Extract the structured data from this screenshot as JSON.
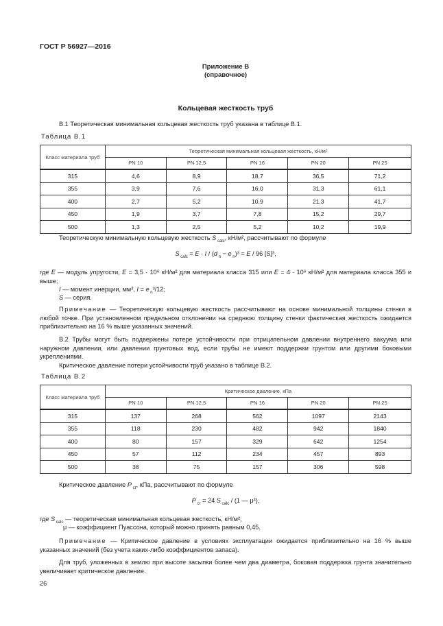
{
  "header": {
    "standard": "ГОСТ Р 56927—2016"
  },
  "appendix": {
    "title": "Приложение В",
    "subtitle": "(справочное)"
  },
  "section_title": "Кольцевая жесткость труб",
  "p_b1": "В.1 Теоретическая минимальная кольцевая жесткость труб указана в таблице В.1.",
  "table1": {
    "caption": "Таблица В.1",
    "row_header": "Класс материала труб",
    "group_header": "Теоретическая минимальная кольцевая жесткость, кН/м²",
    "columns": [
      "PN 10",
      "PN 12,5",
      "PN 16",
      "PN 20",
      "PN 25"
    ],
    "rows": [
      [
        "315",
        "4,6",
        "8,9",
        "18,7",
        "36,5",
        "71,2"
      ],
      [
        "355",
        "3,9",
        "7,6",
        "16,0",
        "31,3",
        "61,1"
      ],
      [
        "400",
        "2,7",
        "5,2",
        "10,9",
        "21,3",
        "41,7"
      ],
      [
        "450",
        "1,9",
        "3,7",
        "7,8",
        "15,2",
        "29,7"
      ],
      [
        "500",
        "1,3",
        "2,5",
        "5,2",
        "10,2",
        "19,9"
      ]
    ]
  },
  "p_scalc_intro": "Теоретическую минимальную кольцевую жесткость S calc, кН/м², рассчитывают по формуле",
  "formula1": "S calc = E · I / (d n − e n)³ = E / 96 [S]³,",
  "where1": [
    "где E — модуль упругости, E = 3,5 · 10⁶ кН/м² для материала класса 315 или E = 4 · 10⁶ кН/м² для материала класса 355 и выше;",
    "I — момент инерции, мм³, I = e n³/12;",
    "S — серия."
  ],
  "note1_label": "Примечание",
  "note1": " — Теоретическую кольцевую жесткость рассчитывают на основе минимальной толщины стенки в любой точке. При установленном предельном отклонении на среднюю толщину стенки фактическая жесткость ожидается приблизительно на 16 % выше указанных значений.",
  "p_b2": "В.2 Трубы могут быть подвержены потере устойчивости при отрицательном давлении внутреннего вакуума или наружном давлении, или давлении грунтовых вод, если трубы не имеют поддержки грунтом или другими боковыми укреплениями.",
  "p_b2_ref": "Критическое давление потери устойчивости труб указано в таблице В.2.",
  "table2": {
    "caption": "Таблица В.2",
    "row_header": "Класс материала труб",
    "group_header": "Критическое давление, кПа",
    "columns": [
      "PN 10",
      "PN 12,5",
      "PN 16",
      "PN 20",
      "PN 25"
    ],
    "rows": [
      [
        "315",
        "137",
        "268",
        "562",
        "1097",
        "2143"
      ],
      [
        "355",
        "118",
        "230",
        "482",
        "942",
        "1840"
      ],
      [
        "400",
        "80",
        "157",
        "329",
        "642",
        "1254"
      ],
      [
        "450",
        "57",
        "112",
        "234",
        "457",
        "893"
      ],
      [
        "500",
        "38",
        "75",
        "157",
        "306",
        "598"
      ]
    ]
  },
  "p_pcr_intro": "Критическое давление P cr, кПа, рассчитывают по формуле",
  "formula2": "P cr = 24 S calc / (1 — μ²),",
  "where2": [
    "где S calc — теоретическая минимальная кольцевая жесткость, кН/м²;",
    "μ — коэффициент Пуассона, который можно принять равным 0,45."
  ],
  "note2_label": "Примечание",
  "note2": " — Критическое давление в условиях эксплуатации ожидается приблизительно на 16 % выше указанных значений (без учета каких-либо коэффициентов запаса).",
  "p_final": "Для труб, уложенных в землю при высоте засыпки более чем два диаметра, боковая поддержка грунта значительно увеличивает критическое давление.",
  "page_number": "26"
}
